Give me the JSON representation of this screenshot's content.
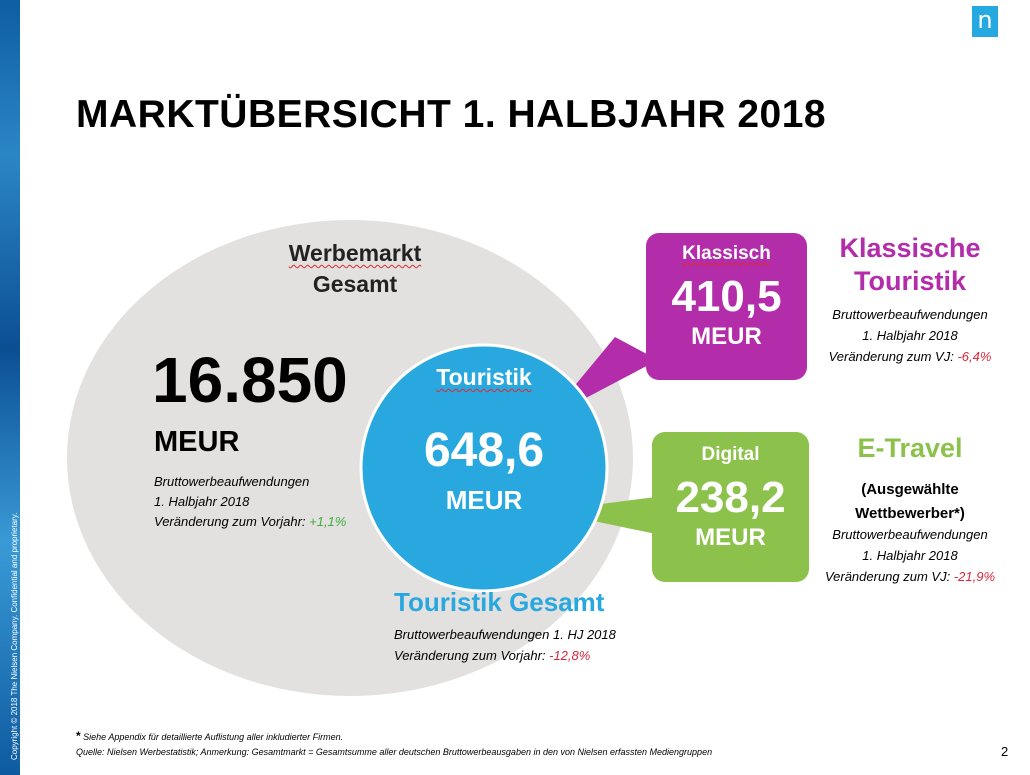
{
  "logo": "n",
  "copyright": "Copyright © 2018 The Nielsen Company. Confidential and proprietary.",
  "title": "MARKTÜBERSICHT 1. HALBJAHR 2018",
  "gesamt": {
    "heading_line1": "Werbemarkt",
    "heading_line2": "Gesamt",
    "value": "16.850",
    "unit": "MEUR",
    "desc1": "Bruttowerbeaufwendungen",
    "desc2": "1. Halbjahr 2018",
    "change_label": "Veränderung zum Vorjahr: ",
    "change_value": "+1,1%"
  },
  "touristik": {
    "heading": "Touristik",
    "value": "648,6",
    "unit": "MEUR",
    "caption_title": "Touristik Gesamt",
    "desc1": "Bruttowerbeaufwendungen 1. HJ 2018",
    "change_label": "Veränderung zum Vorjahr: ",
    "change_value": "-12,8%"
  },
  "klassisch": {
    "label": "Klassisch",
    "value": "410,5",
    "unit": "MEUR",
    "side_title1": "Klassische",
    "side_title2": "Touristik",
    "desc1": "Bruttowerbeaufwendungen",
    "desc2": "1. Halbjahr 2018",
    "change_label": "Veränderung zum VJ: ",
    "change_value": "-6,4%"
  },
  "digital": {
    "label": "Digital",
    "value": "238,2",
    "unit": "MEUR",
    "side_title": "E-Travel",
    "side_sub1": "(Ausgewählte",
    "side_sub2": "Wettbewerber*)",
    "desc1": "Bruttowerbeaufwendungen",
    "desc2": "1. Halbjahr 2018",
    "change_label": "Veränderung zum VJ: ",
    "change_value": "-21,9%"
  },
  "footnote_star": "*",
  "footnote1": " Siehe Appendix für detaillierte Auflistung aller inkludierter Firmen.",
  "footnote2": "Quelle: Nielsen Werbestatistik; Anmerkung: Gesamtmarkt = Gesamtsumme aller deutschen Bruttowerbeausgaben in den von Nielsen erfassten Mediengruppen",
  "page_number": "2",
  "colors": {
    "ellipse": "#e2e1df",
    "circle": "#29a8e0",
    "klassisch": "#b32dab",
    "digital": "#8cc24b",
    "positive": "#3cae3f",
    "negative": "#d8263a"
  }
}
